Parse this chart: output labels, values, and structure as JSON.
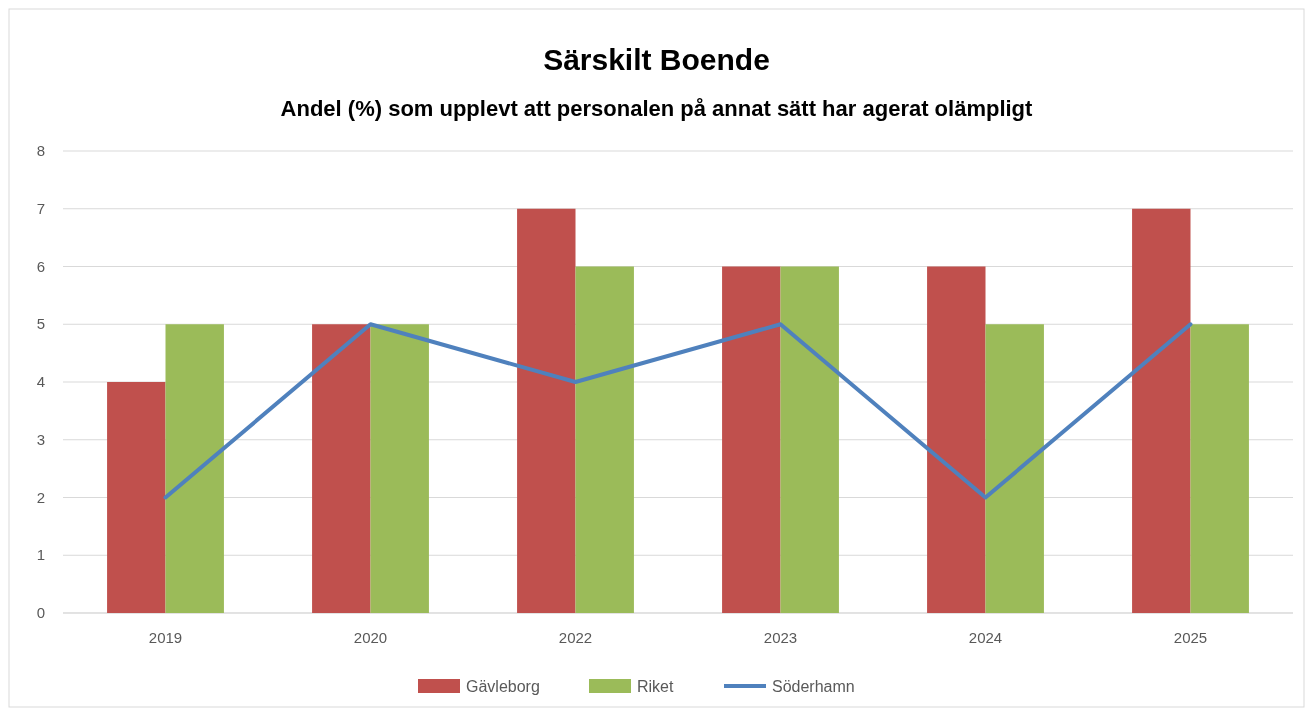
{
  "chart_data": {
    "type": "bar",
    "title": "Särskilt Boende",
    "subtitle": "Andel (%) som upplevt att personalen på annat sätt har agerat olämpligt",
    "categories": [
      "2019",
      "2020",
      "2022",
      "2023",
      "2024",
      "2025"
    ],
    "series": [
      {
        "name": "Gävleborg",
        "color": "#c0504d",
        "values": [
          4,
          5,
          7,
          6,
          6,
          7
        ]
      },
      {
        "name": "Riket",
        "color": "#9bbb59",
        "values": [
          5,
          5,
          6,
          6,
          5,
          5
        ]
      },
      {
        "name": "Söderhamn",
        "type": "line",
        "color": "#4f81bd",
        "values": [
          2,
          5,
          4,
          5,
          2,
          5
        ]
      }
    ],
    "ylim": [
      0,
      8
    ],
    "yticks": [
      0,
      1,
      2,
      3,
      4,
      5,
      6,
      7,
      8
    ],
    "grid": "y",
    "legend": "bottom"
  }
}
